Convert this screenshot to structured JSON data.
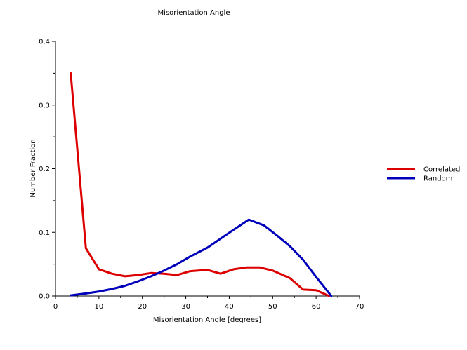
{
  "chart_data": {
    "type": "line",
    "title": "Misorientation Angle",
    "xlabel": "Misorientation Angle [degrees]",
    "ylabel": "Number Fraction",
    "xlim": [
      0,
      70
    ],
    "ylim": [
      0,
      0.4
    ],
    "x_ticks": [
      "0",
      "10",
      "20",
      "30",
      "40",
      "50",
      "60",
      "70"
    ],
    "y_ticks": [
      "0.0",
      "0.1",
      "0.2",
      "0.3",
      "0.4"
    ],
    "grid": false,
    "legend_position": "right",
    "series": [
      {
        "name": "Correlated",
        "color": "#dd0000",
        "x": [
          3.5,
          7,
          10,
          13,
          16,
          19,
          22,
          25,
          28,
          31,
          35,
          38,
          41,
          44,
          47,
          50,
          54,
          57,
          60,
          63
        ],
        "y": [
          0.35,
          0.075,
          0.042,
          0.035,
          0.031,
          0.033,
          0.036,
          0.035,
          0.033,
          0.039,
          0.041,
          0.035,
          0.042,
          0.045,
          0.045,
          0.04,
          0.028,
          0.01,
          0.009,
          0.0
        ]
      },
      {
        "name": "Random",
        "color": "#0000bb",
        "x": [
          3.5,
          7,
          10,
          13,
          16,
          19,
          22,
          25,
          28,
          31,
          35,
          38,
          41,
          44.5,
          48,
          51,
          54,
          57,
          60,
          63.5
        ],
        "y": [
          0.001,
          0.004,
          0.007,
          0.011,
          0.016,
          0.023,
          0.031,
          0.04,
          0.05,
          0.062,
          0.076,
          0.09,
          0.104,
          0.12,
          0.111,
          0.095,
          0.078,
          0.057,
          0.03,
          0.0
        ]
      }
    ]
  }
}
